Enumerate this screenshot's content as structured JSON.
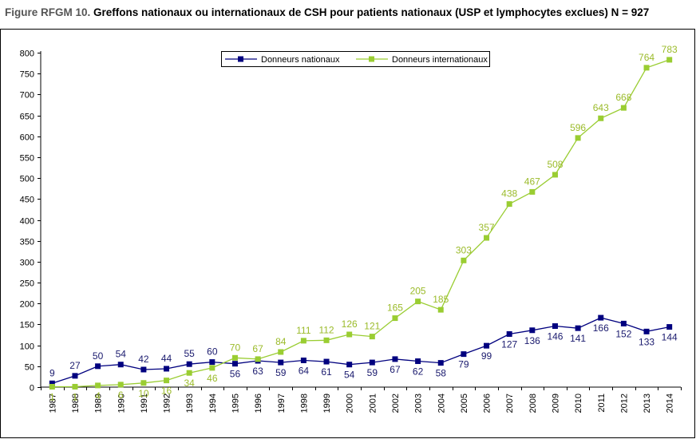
{
  "title_prefix": "Figure RFGM 10.",
  "title_main": "Greffons nationaux ou internationaux de CSH pour patients nationaux (USP et lymphocytes exclues) N = 927",
  "colors": {
    "national": "#00007f",
    "international": "#9acd32",
    "national_label": "#1a1a6e",
    "international_label": "#9bbb2a"
  },
  "chart_data": {
    "type": "line",
    "title": "Greffons nationaux ou internationaux de CSH pour patients nationaux (USP et lymphocytes exclues) N = 927",
    "xlabel": "",
    "ylabel": "",
    "ylim": [
      0,
      800
    ],
    "yticks": [
      "0",
      "50",
      "100",
      "150",
      "200",
      "250",
      "300",
      "350",
      "400",
      "450",
      "500",
      "550",
      "600",
      "650",
      "700",
      "750",
      "800"
    ],
    "grid": false,
    "legend_position": "top-center",
    "x": [
      "1987",
      "1988",
      "1989",
      "1990",
      "1991",
      "1992",
      "1993",
      "1994",
      "1995",
      "1996",
      "1997",
      "1998",
      "1999",
      "2000",
      "2001",
      "2002",
      "2003",
      "2004",
      "2005",
      "2006",
      "2007",
      "2008",
      "2009",
      "2010",
      "2011",
      "2012",
      "2013",
      "2014"
    ],
    "series": [
      {
        "name": "Donneurs nationaux",
        "values": [
          9,
          27,
          50,
          54,
          42,
          44,
          55,
          60,
          56,
          63,
          59,
          64,
          61,
          54,
          59,
          67,
          62,
          58,
          79,
          99,
          127,
          136,
          146,
          141,
          166,
          152,
          133,
          144
        ]
      },
      {
        "name": "Donneurs internationaux",
        "values": [
          1,
          1,
          4,
          6,
          10,
          16,
          34,
          46,
          70,
          67,
          84,
          111,
          112,
          126,
          121,
          165,
          205,
          185,
          303,
          357,
          438,
          467,
          508,
          596,
          643,
          668,
          764,
          783
        ]
      }
    ]
  }
}
